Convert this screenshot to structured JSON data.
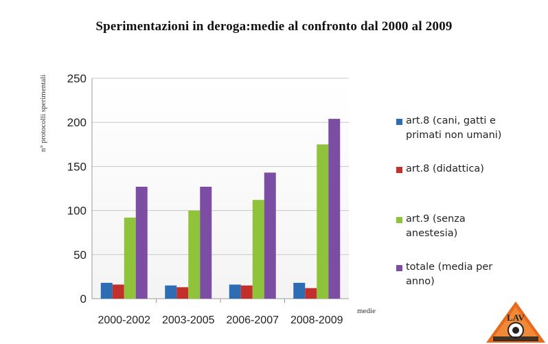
{
  "title": "Sperimentazioni in deroga:medie al confronto dal 2000 al 2009",
  "chart_data": {
    "type": "bar",
    "categories": [
      "2000-2002",
      "2003-2005",
      "2006-2007",
      "2008-2009"
    ],
    "series": [
      {
        "name": "art.8 (cani, gatti e primati non umani)",
        "values": [
          18,
          15,
          16,
          18
        ],
        "color": "#2e6db4"
      },
      {
        "name": "art.8 (didattica)",
        "values": [
          16,
          13,
          15,
          12
        ],
        "color": "#c3302c"
      },
      {
        "name": "art.9 (senza anestesia)",
        "values": [
          92,
          100,
          112,
          175
        ],
        "color": "#8fc33a"
      },
      {
        "name": "totale (media per anno)",
        "values": [
          127,
          127,
          143,
          204
        ],
        "color": "#7b4ea3"
      }
    ],
    "ylabel": "n° protocolli sperimentali",
    "xlabel": "medie",
    "ylim": [
      0,
      250
    ],
    "yticks": [
      0,
      50,
      100,
      150,
      200,
      250
    ],
    "grid": true,
    "legend": "right"
  },
  "logo": {
    "text": "LAV"
  }
}
